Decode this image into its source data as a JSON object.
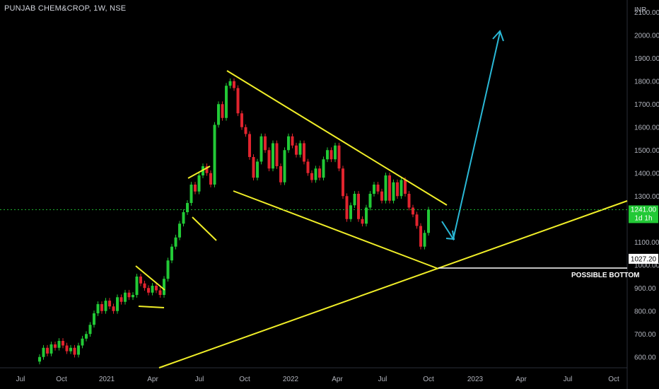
{
  "header": {
    "title": "PUNJAB CHEM&CROP, 1W, NSE"
  },
  "chart_data": {
    "type": "candlestick",
    "title": "PUNJAB CHEM&CROP, 1W, NSE",
    "y_unit": "INR",
    "y_ticks": [
      "2100.00",
      "2000.00",
      "1900.00",
      "1800.00",
      "1700.00",
      "1600.00",
      "1500.00",
      "1400.00",
      "1300.00",
      "1100.00",
      "1000.00",
      "900.00",
      "800.00",
      "700.00",
      "600.00"
    ],
    "x_ticks": [
      "Jul",
      "Oct",
      "2021",
      "Apr",
      "Jul",
      "Oct",
      "2022",
      "Apr",
      "Jul",
      "Oct",
      "2023",
      "Apr",
      "Jul",
      "Oct"
    ],
    "ylim": [
      590,
      2190
    ],
    "last_price": {
      "label": "1241.00",
      "sub": "1d 1h",
      "value": 1241
    },
    "support_price": {
      "label": "1027.20",
      "value": 1027.2
    },
    "annotation": "POSSIBLE BOTTOM",
    "colors": {
      "up": "#22c936",
      "down": "#e0242e",
      "trendline": "#f0ee28",
      "projection": "#2ab8d6",
      "axis_text": "#b2b5be",
      "background": "#000000"
    },
    "candles": [
      {
        "x": "Jul",
        "o": 580,
        "c": 600
      },
      {
        "x": "",
        "o": 600,
        "c": 640
      },
      {
        "x": "",
        "o": 640,
        "c": 615
      },
      {
        "x": "",
        "o": 615,
        "c": 655
      },
      {
        "x": "",
        "o": 655,
        "c": 640
      },
      {
        "x": "",
        "o": 640,
        "c": 670
      },
      {
        "x": "Oct",
        "o": 670,
        "c": 650
      },
      {
        "x": "",
        "o": 650,
        "c": 625
      },
      {
        "x": "",
        "o": 625,
        "c": 640
      },
      {
        "x": "",
        "o": 640,
        "c": 610
      },
      {
        "x": "",
        "o": 610,
        "c": 650
      },
      {
        "x": "",
        "o": 650,
        "c": 680
      },
      {
        "x": "",
        "o": 680,
        "c": 700
      },
      {
        "x": "",
        "o": 700,
        "c": 740
      },
      {
        "x": "",
        "o": 740,
        "c": 790
      },
      {
        "x": "",
        "o": 790,
        "c": 830
      },
      {
        "x": "",
        "o": 830,
        "c": 800
      },
      {
        "x": "",
        "o": 800,
        "c": 845
      },
      {
        "x": "2021",
        "o": 845,
        "c": 820
      },
      {
        "x": "",
        "o": 820,
        "c": 800
      },
      {
        "x": "",
        "o": 800,
        "c": 860
      },
      {
        "x": "",
        "o": 860,
        "c": 840
      },
      {
        "x": "",
        "o": 840,
        "c": 880
      },
      {
        "x": "",
        "o": 880,
        "c": 860
      },
      {
        "x": "",
        "o": 860,
        "c": 870
      },
      {
        "x": "",
        "o": 870,
        "c": 950
      },
      {
        "x": "",
        "o": 950,
        "c": 920
      },
      {
        "x": "",
        "o": 920,
        "c": 900
      },
      {
        "x": "Apr",
        "o": 900,
        "c": 880
      },
      {
        "x": "",
        "o": 880,
        "c": 910
      },
      {
        "x": "",
        "o": 910,
        "c": 890
      },
      {
        "x": "",
        "o": 890,
        "c": 870
      },
      {
        "x": "",
        "o": 870,
        "c": 940
      },
      {
        "x": "",
        "o": 940,
        "c": 1020
      },
      {
        "x": "",
        "o": 1020,
        "c": 1080
      },
      {
        "x": "",
        "o": 1080,
        "c": 1120
      },
      {
        "x": "",
        "o": 1120,
        "c": 1180
      },
      {
        "x": "",
        "o": 1180,
        "c": 1230
      },
      {
        "x": "",
        "o": 1230,
        "c": 1270
      },
      {
        "x": "Jul",
        "o": 1270,
        "c": 1350
      },
      {
        "x": "",
        "o": 1350,
        "c": 1320
      },
      {
        "x": "",
        "o": 1320,
        "c": 1390
      },
      {
        "x": "",
        "o": 1390,
        "c": 1430
      },
      {
        "x": "",
        "o": 1430,
        "c": 1400
      },
      {
        "x": "",
        "o": 1400,
        "c": 1350
      },
      {
        "x": "",
        "o": 1350,
        "c": 1610
      },
      {
        "x": "",
        "o": 1610,
        "c": 1700
      },
      {
        "x": "",
        "o": 1700,
        "c": 1640
      },
      {
        "x": "",
        "o": 1640,
        "c": 1780
      },
      {
        "x": "",
        "o": 1780,
        "c": 1800
      },
      {
        "x": "",
        "o": 1800,
        "c": 1770
      },
      {
        "x": "Oct",
        "o": 1770,
        "c": 1660
      },
      {
        "x": "",
        "o": 1660,
        "c": 1600
      },
      {
        "x": "",
        "o": 1600,
        "c": 1570
      },
      {
        "x": "",
        "o": 1570,
        "c": 1470
      },
      {
        "x": "",
        "o": 1470,
        "c": 1380
      },
      {
        "x": "",
        "o": 1380,
        "c": 1450
      },
      {
        "x": "",
        "o": 1450,
        "c": 1560
      },
      {
        "x": "",
        "o": 1560,
        "c": 1500
      },
      {
        "x": "",
        "o": 1500,
        "c": 1420
      },
      {
        "x": "",
        "o": 1420,
        "c": 1530
      },
      {
        "x": "",
        "o": 1530,
        "c": 1430
      },
      {
        "x": "",
        "o": 1430,
        "c": 1360
      },
      {
        "x": "",
        "o": 1360,
        "c": 1500
      },
      {
        "x": "2022",
        "o": 1500,
        "c": 1560
      },
      {
        "x": "",
        "o": 1560,
        "c": 1520
      },
      {
        "x": "",
        "o": 1520,
        "c": 1480
      },
      {
        "x": "",
        "o": 1480,
        "c": 1530
      },
      {
        "x": "",
        "o": 1530,
        "c": 1450
      },
      {
        "x": "",
        "o": 1450,
        "c": 1400
      },
      {
        "x": "",
        "o": 1400,
        "c": 1370
      },
      {
        "x": "",
        "o": 1370,
        "c": 1420
      },
      {
        "x": "",
        "o": 1420,
        "c": 1380
      },
      {
        "x": "",
        "o": 1380,
        "c": 1460
      },
      {
        "x": "",
        "o": 1460,
        "c": 1500
      },
      {
        "x": "Apr",
        "o": 1500,
        "c": 1460
      },
      {
        "x": "",
        "o": 1460,
        "c": 1520
      },
      {
        "x": "",
        "o": 1520,
        "c": 1420
      },
      {
        "x": "",
        "o": 1420,
        "c": 1300
      },
      {
        "x": "",
        "o": 1300,
        "c": 1200
      },
      {
        "x": "",
        "o": 1200,
        "c": 1260
      },
      {
        "x": "",
        "o": 1260,
        "c": 1310
      },
      {
        "x": "",
        "o": 1310,
        "c": 1200
      },
      {
        "x": "",
        "o": 1200,
        "c": 1180
      },
      {
        "x": "",
        "o": 1180,
        "c": 1250
      },
      {
        "x": "",
        "o": 1250,
        "c": 1310
      },
      {
        "x": "",
        "o": 1310,
        "c": 1350
      },
      {
        "x": "Jul",
        "o": 1350,
        "c": 1320
      },
      {
        "x": "",
        "o": 1320,
        "c": 1280
      },
      {
        "x": "",
        "o": 1280,
        "c": 1390
      },
      {
        "x": "",
        "o": 1390,
        "c": 1280
      },
      {
        "x": "",
        "o": 1280,
        "c": 1360
      },
      {
        "x": "",
        "o": 1360,
        "c": 1300
      },
      {
        "x": "",
        "o": 1300,
        "c": 1370
      },
      {
        "x": "",
        "o": 1370,
        "c": 1310
      },
      {
        "x": "",
        "o": 1310,
        "c": 1250
      },
      {
        "x": "",
        "o": 1250,
        "c": 1220
      },
      {
        "x": "Oct",
        "o": 1220,
        "c": 1170
      },
      {
        "x": "",
        "o": 1170,
        "c": 1080
      },
      {
        "x": "",
        "o": 1080,
        "c": 1140
      },
      {
        "x": "",
        "o": 1140,
        "c": 1241
      }
    ]
  }
}
